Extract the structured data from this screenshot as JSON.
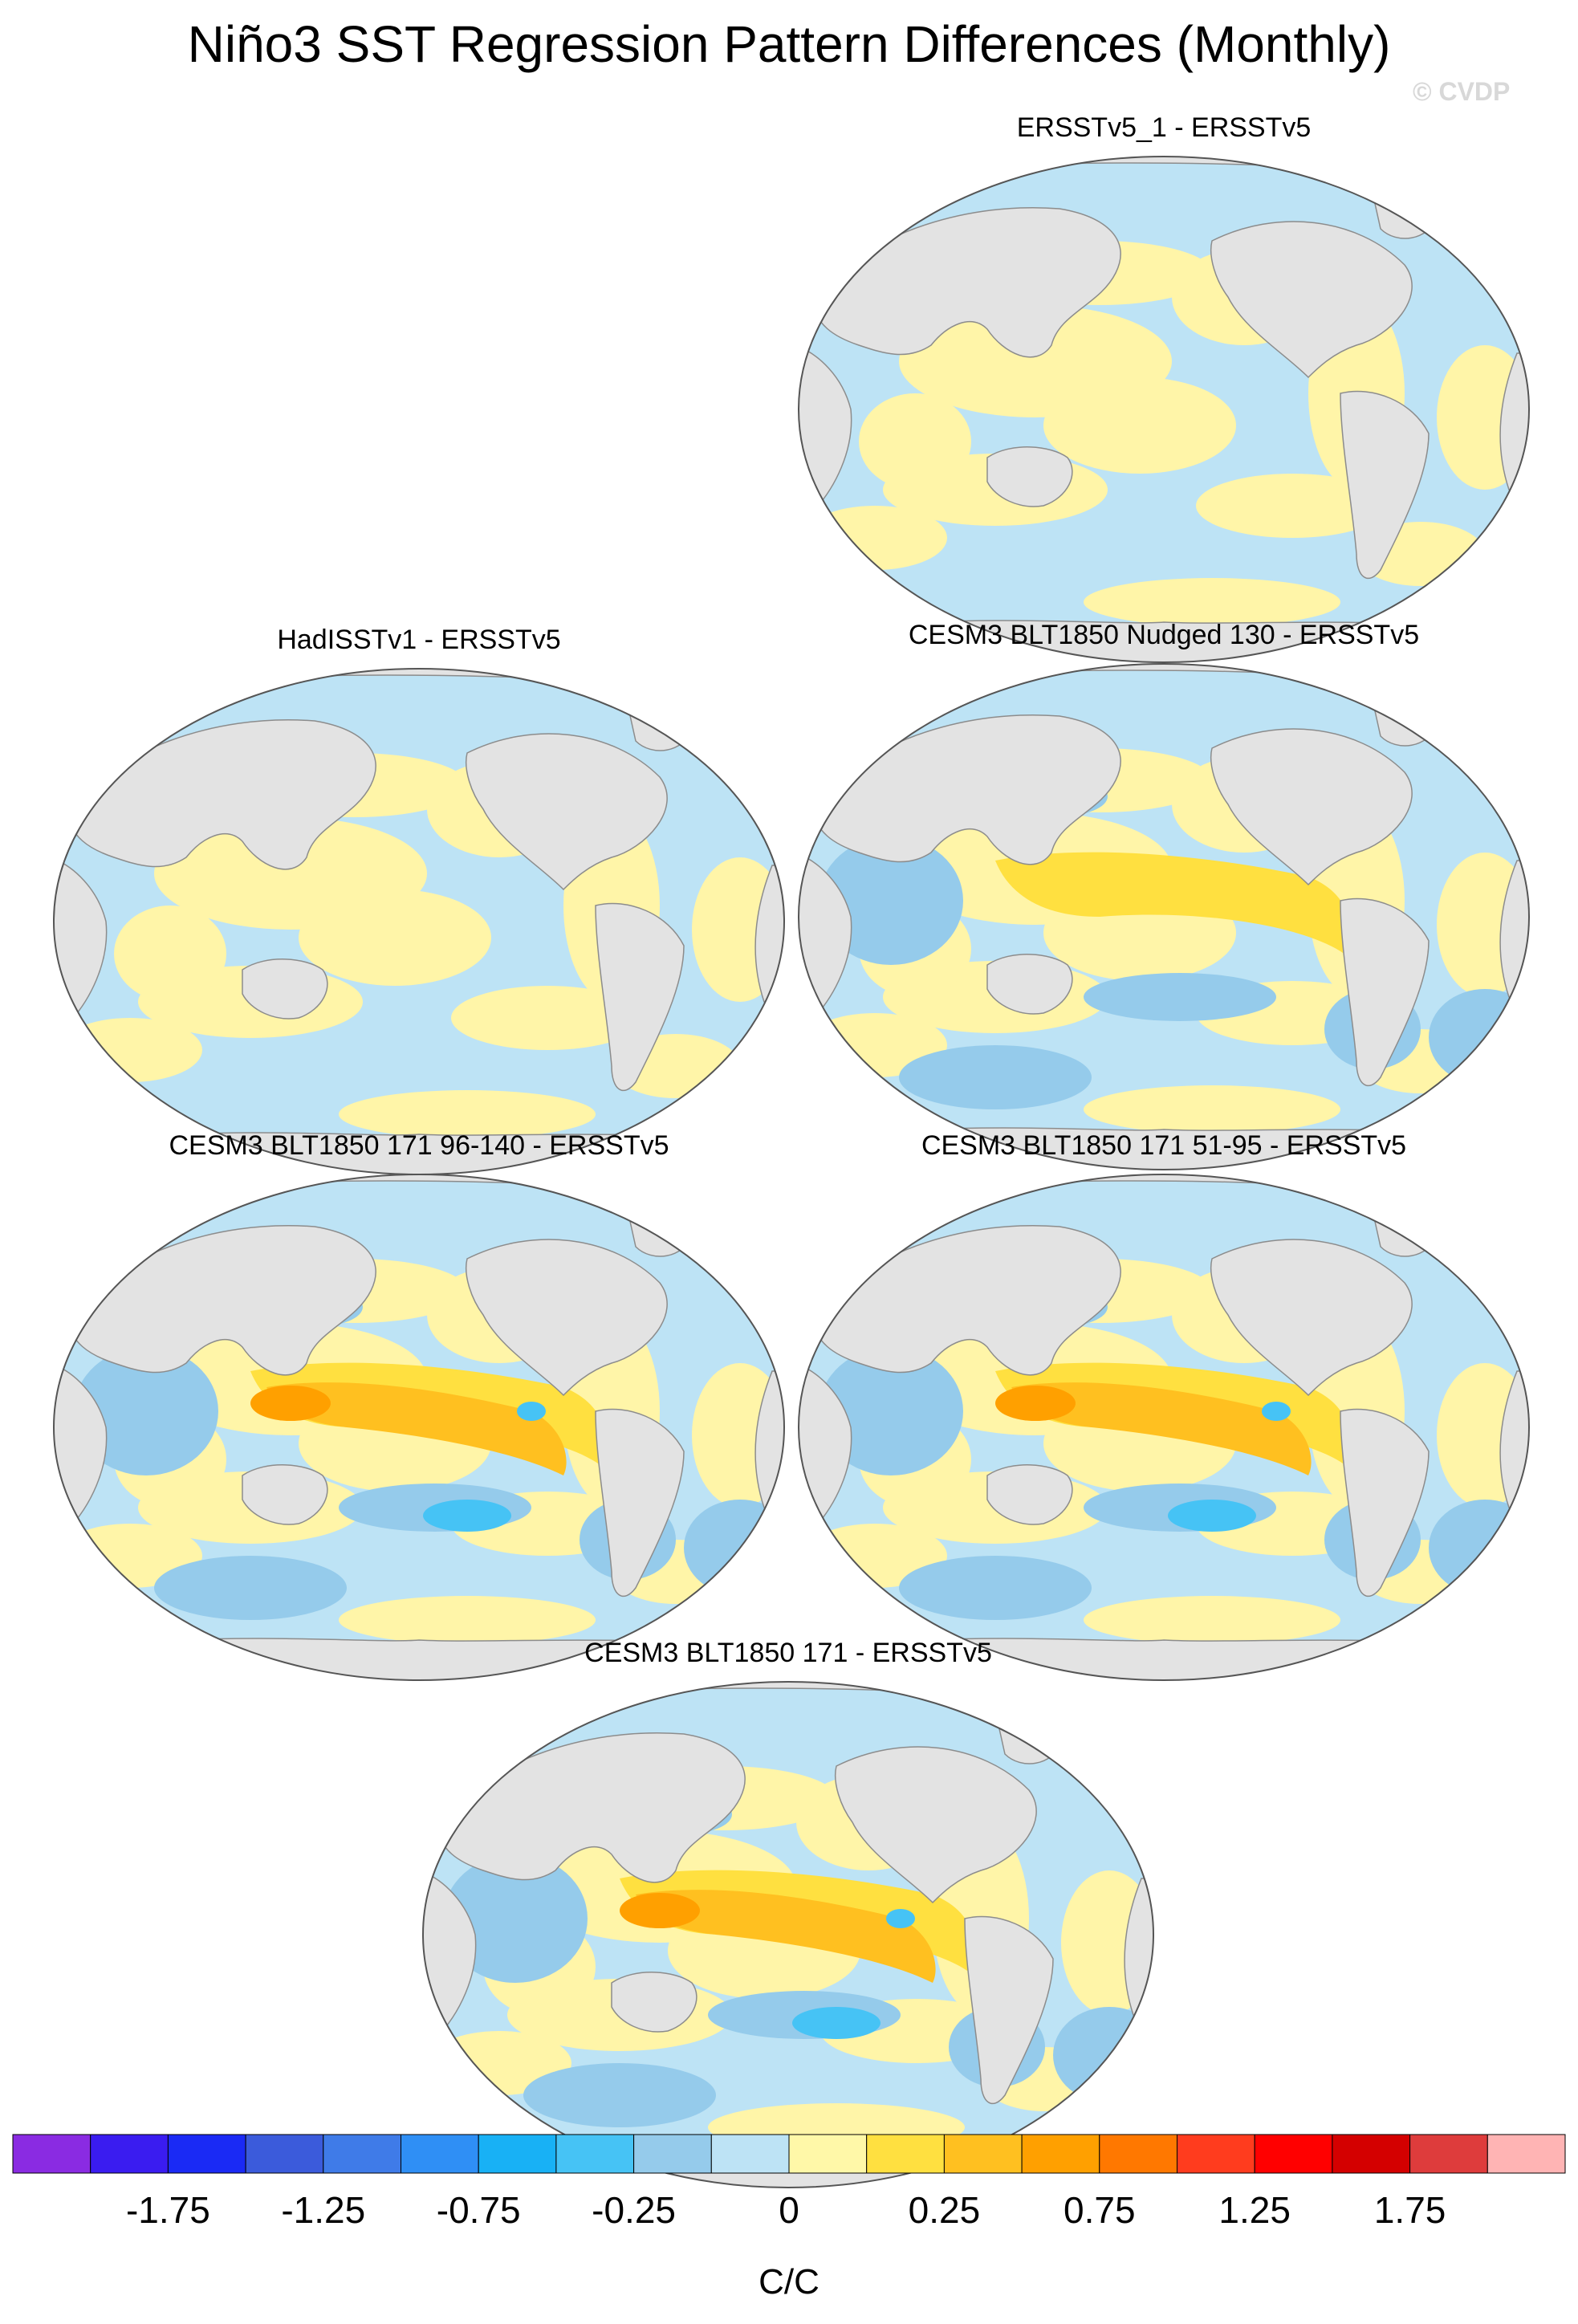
{
  "figure": {
    "title": "Niño3 SST Regression Pattern Differences (Monthly)",
    "watermark": "© CVDP"
  },
  "panels": [
    {
      "title": "ERSSTv5_1 - ERSSTv5",
      "intensity": 0.35
    },
    {
      "title": "HadISSTv1 - ERSSTv5",
      "intensity": 0.4
    },
    {
      "title": "CESM3 BLT1850 Nudged 130 - ERSSTv5",
      "intensity": 0.6
    },
    {
      "title": "CESM3 BLT1850 171 96-140 - ERSSTv5",
      "intensity": 1.0
    },
    {
      "title": "CESM3 BLT1850 171 51-95 - ERSSTv5",
      "intensity": 0.95
    },
    {
      "title": "CESM3 BLT1850 171 - ERSSTv5",
      "intensity": 1.0
    }
  ],
  "colorbar": {
    "units": "C/C",
    "colors": [
      "#8a2be2",
      "#3a1cf0",
      "#1a2af5",
      "#3b5bdb",
      "#3f7be8",
      "#2f8ff5",
      "#18b1f5",
      "#46c3f5",
      "#95cbeb",
      "#bde3f5",
      "#fff8a8",
      "#ffe040",
      "#ffc020",
      "#ffa000",
      "#ff7800",
      "#ff3c1e",
      "#ff0000",
      "#d40000",
      "#de3c3c",
      "#ffb4b4"
    ],
    "labels": [
      "-1.75",
      "-1.25",
      "-0.75",
      "-0.25",
      "0",
      "0.25",
      "0.75",
      "1.25",
      "1.75"
    ]
  },
  "map_colors": {
    "land": "#e3e3e3",
    "coast": "#8c8c8c",
    "ocean_neg_weak": "#bde3f5",
    "ocean_pos_weak": "#fff5a8",
    "ocean_neg_mod": "#95cbeb",
    "ocean_pos_mod": "#ffe040",
    "ocean_pos_strong": "#ffc020",
    "ocean_pos_max": "#ffa000",
    "ocean_neg_strong": "#46c3f5"
  }
}
